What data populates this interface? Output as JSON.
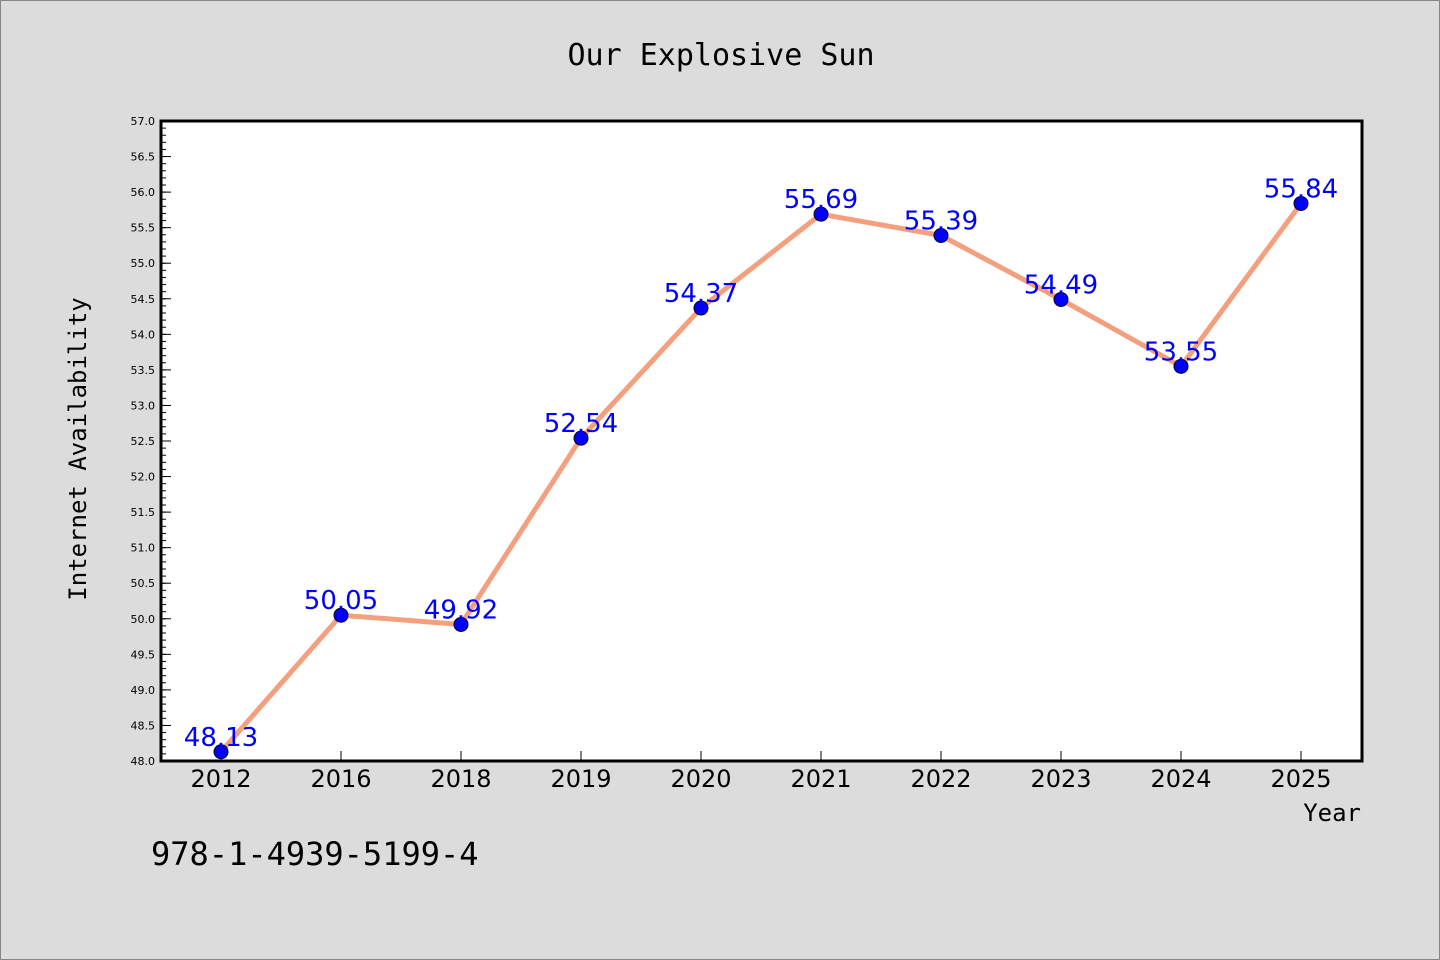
{
  "footer": {
    "isbn": "978-1-4939-5199-4"
  },
  "colors": {
    "line": "#f4a07e",
    "marker": "#0000ff",
    "label": "#0000ff",
    "background": "#dcdcdc",
    "plot_background": "#ffffff"
  },
  "chart_data": {
    "type": "line",
    "title": "Our Explosive Sun",
    "xlabel": "Year",
    "ylabel": "Internet Availability",
    "categories": [
      "2012",
      "2016",
      "2018",
      "2019",
      "2020",
      "2021",
      "2022",
      "2023",
      "2024",
      "2025"
    ],
    "series": [
      {
        "values": [
          48.13,
          50.05,
          49.92,
          52.54,
          54.37,
          55.69,
          55.39,
          54.49,
          53.55,
          55.84
        ]
      }
    ],
    "data_labels": [
      "48.13",
      "50.05",
      "49.92",
      "52.54",
      "54.37",
      "55.69",
      "55.39",
      "54.49",
      "53.55",
      "55.84"
    ],
    "ylim": [
      48.0,
      57.0
    ],
    "yticks": [
      "48.0",
      "48.5",
      "49.0",
      "49.5",
      "50.0",
      "50.5",
      "51.0",
      "51.5",
      "52.0",
      "52.5",
      "53.0",
      "53.5",
      "54.0",
      "54.5",
      "55.0",
      "55.5",
      "56.0",
      "56.5",
      "57.0"
    ],
    "grid": false,
    "legend": "none"
  }
}
